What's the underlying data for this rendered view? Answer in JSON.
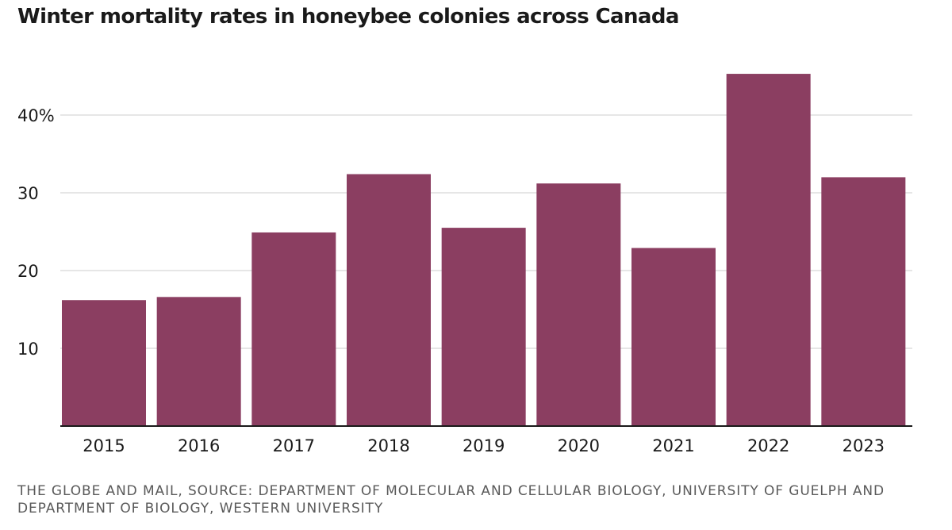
{
  "title": "Winter mortality rates in honeybee colonies across Canada",
  "source": "THE GLOBE AND MAIL, SOURCE: DEPARTMENT OF MOLECULAR AND CELLULAR BIOLOGY, UNIVERSITY OF GUELPH AND DEPARTMENT OF BIOLOGY, WESTERN UNIVERSITY",
  "colors": {
    "bar": "#8b3e61",
    "grid": "#cccccc",
    "axis": "#1a1a1a"
  },
  "chart_data": {
    "type": "bar",
    "title": "Winter mortality rates in honeybee colonies across Canada",
    "xlabel": "",
    "ylabel": "",
    "categories": [
      "2015",
      "2016",
      "2017",
      "2018",
      "2019",
      "2020",
      "2021",
      "2022",
      "2023"
    ],
    "values": [
      16.2,
      16.6,
      24.9,
      32.4,
      25.5,
      31.2,
      22.9,
      45.3,
      32.0
    ],
    "ylim": [
      0,
      46
    ],
    "yticks": [
      10,
      20,
      30,
      40
    ],
    "ytick_labels": [
      "10",
      "20",
      "30",
      "40%"
    ],
    "grid": true,
    "legend": "none"
  }
}
